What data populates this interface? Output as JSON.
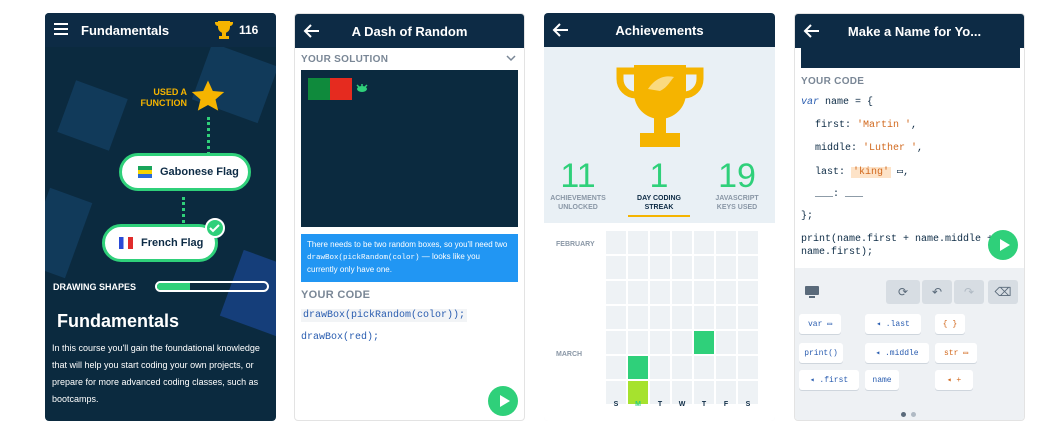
{
  "p1": {
    "title": "Fundamentals",
    "trophy_count": "116",
    "achievement_text": "USED A FUNCTION",
    "node1": "Gabonese Flag",
    "node2": "French Flag",
    "progress_label": "DRAWING SHAPES",
    "progress": 0.3,
    "heading": "Fundamentals",
    "description": "In this course you'll gain the foundational knowledge that will help you start coding your own projects, or prepare for more advanced coding classes, such as bootcamps."
  },
  "p2": {
    "title": "A Dash of Random",
    "solution_label": "YOUR SOLUTION",
    "hint_a": "There needs to be two random boxes, so you'll need two ",
    "hint_code": "drawBox(pickRandom(color)",
    "hint_b": " — looks like you currently only have one.",
    "code_label": "YOUR CODE",
    "line1": "drawBox(pickRandom(color));",
    "line2": "drawBox(red);"
  },
  "p3": {
    "title": "Achievements",
    "stats": [
      {
        "num": "11",
        "label": "ACHIEVEMENTS UNLOCKED"
      },
      {
        "num": "1",
        "label": "DAY CODING STREAK"
      },
      {
        "num": "19",
        "label": "JAVASCRIPT KEYS USED"
      }
    ],
    "month1": "FEBRUARY",
    "month2": "MARCH",
    "days": [
      "S",
      "M",
      "T",
      "W",
      "T",
      "F",
      "S"
    ]
  },
  "p4": {
    "title": "Make a Name for Yo...",
    "code_label": "YOUR CODE",
    "l1_kw": "var",
    "l1_rest": " name = {",
    "first_key": "first:",
    "first_val": "'Martin '",
    "middle_key": "middle:",
    "middle_val": "'Luther '",
    "last_key": "last:",
    "last_val": "'king'",
    "blank": "___: ___",
    "close": "};",
    "print1": "print(name.first + name.middle +",
    "print2": "name.first);",
    "keys": [
      "var",
      ".last",
      "{ }",
      "print()",
      ".middle",
      "str",
      ".first",
      "name",
      "+"
    ]
  },
  "colors": {
    "accent": "#2fd07a",
    "navy": "#0d2b45",
    "blue": "#2196f3"
  }
}
